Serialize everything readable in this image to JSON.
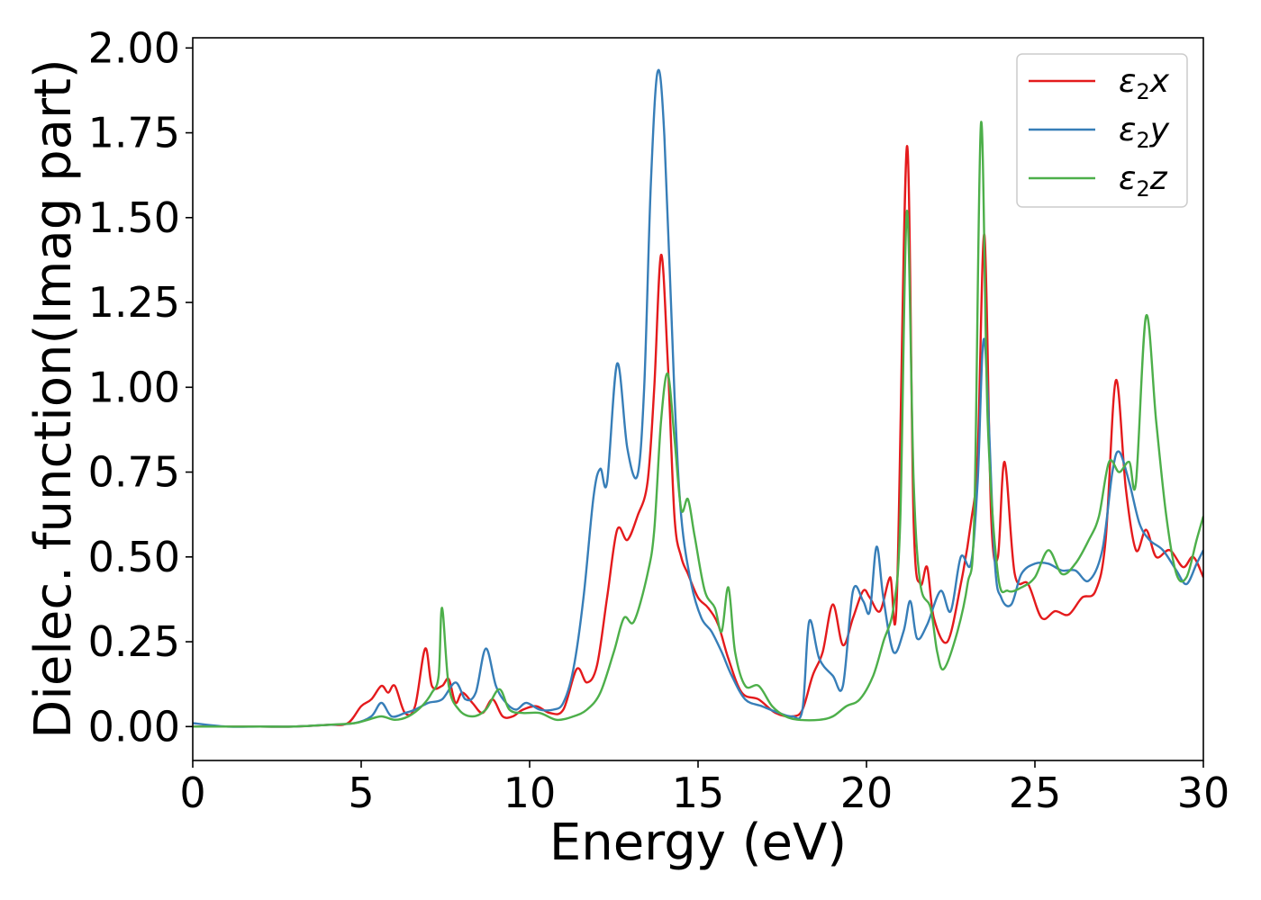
{
  "chart_data": {
    "type": "line",
    "xlabel": "Energy (eV)",
    "ylabel": "Dielec. function(Imag part)",
    "xlim": [
      0,
      30
    ],
    "ylim": [
      -0.1,
      2.03
    ],
    "xticks": [
      0,
      5,
      10,
      15,
      20,
      25,
      30
    ],
    "yticks": [
      0.0,
      0.25,
      0.5,
      0.75,
      1.0,
      1.25,
      1.5,
      1.75,
      2.0
    ],
    "xtick_labels": [
      "0",
      "5",
      "10",
      "15",
      "20",
      "25",
      "30"
    ],
    "ytick_labels": [
      "0.00",
      "0.25",
      "0.50",
      "0.75",
      "1.00",
      "1.25",
      "1.50",
      "1.75",
      "2.00"
    ],
    "grid": false,
    "legend_position": "top-right",
    "series": [
      {
        "name": "ε2x",
        "legend_base": "ε",
        "legend_sub": "2",
        "legend_tail": "x",
        "color": "#e41a1c",
        "points": [
          [
            0,
            0.0
          ],
          [
            1,
            0.0
          ],
          [
            2,
            0.0
          ],
          [
            3,
            0.0
          ],
          [
            4,
            0.005
          ],
          [
            4.6,
            0.01
          ],
          [
            5,
            0.06
          ],
          [
            5.3,
            0.08
          ],
          [
            5.6,
            0.12
          ],
          [
            5.8,
            0.1
          ],
          [
            6.0,
            0.12
          ],
          [
            6.3,
            0.04
          ],
          [
            6.6,
            0.06
          ],
          [
            6.9,
            0.23
          ],
          [
            7.1,
            0.12
          ],
          [
            7.4,
            0.12
          ],
          [
            7.6,
            0.14
          ],
          [
            7.8,
            0.07
          ],
          [
            8.0,
            0.1
          ],
          [
            8.3,
            0.07
          ],
          [
            8.6,
            0.04
          ],
          [
            8.9,
            0.08
          ],
          [
            9.2,
            0.03
          ],
          [
            9.5,
            0.03
          ],
          [
            9.8,
            0.05
          ],
          [
            10.2,
            0.06
          ],
          [
            10.6,
            0.04
          ],
          [
            11.0,
            0.05
          ],
          [
            11.4,
            0.17
          ],
          [
            11.7,
            0.13
          ],
          [
            12.0,
            0.18
          ],
          [
            12.3,
            0.38
          ],
          [
            12.6,
            0.58
          ],
          [
            12.9,
            0.55
          ],
          [
            13.2,
            0.62
          ],
          [
            13.5,
            0.72
          ],
          [
            13.7,
            1.0
          ],
          [
            13.9,
            1.39
          ],
          [
            14.1,
            1.08
          ],
          [
            14.3,
            0.62
          ],
          [
            14.5,
            0.5
          ],
          [
            14.7,
            0.45
          ],
          [
            15.0,
            0.38
          ],
          [
            15.3,
            0.35
          ],
          [
            15.6,
            0.3
          ],
          [
            15.9,
            0.2
          ],
          [
            16.3,
            0.1
          ],
          [
            16.8,
            0.08
          ],
          [
            17.3,
            0.04
          ],
          [
            17.8,
            0.03
          ],
          [
            18.1,
            0.05
          ],
          [
            18.4,
            0.15
          ],
          [
            18.7,
            0.22
          ],
          [
            19.0,
            0.36
          ],
          [
            19.3,
            0.24
          ],
          [
            19.6,
            0.32
          ],
          [
            19.9,
            0.4
          ],
          [
            20.1,
            0.38
          ],
          [
            20.4,
            0.34
          ],
          [
            20.7,
            0.44
          ],
          [
            20.9,
            0.38
          ],
          [
            21.2,
            1.71
          ],
          [
            21.4,
            0.6
          ],
          [
            21.6,
            0.42
          ],
          [
            21.8,
            0.47
          ],
          [
            22.0,
            0.32
          ],
          [
            22.4,
            0.25
          ],
          [
            22.8,
            0.42
          ],
          [
            23.1,
            0.6
          ],
          [
            23.3,
            0.8
          ],
          [
            23.5,
            1.45
          ],
          [
            23.7,
            0.62
          ],
          [
            23.9,
            0.5
          ],
          [
            24.1,
            0.78
          ],
          [
            24.4,
            0.45
          ],
          [
            24.8,
            0.42
          ],
          [
            25.2,
            0.32
          ],
          [
            25.6,
            0.34
          ],
          [
            26.0,
            0.33
          ],
          [
            26.4,
            0.38
          ],
          [
            26.8,
            0.4
          ],
          [
            27.1,
            0.55
          ],
          [
            27.4,
            1.02
          ],
          [
            27.7,
            0.7
          ],
          [
            28.0,
            0.52
          ],
          [
            28.3,
            0.58
          ],
          [
            28.6,
            0.5
          ],
          [
            29.0,
            0.52
          ],
          [
            29.4,
            0.47
          ],
          [
            29.7,
            0.5
          ],
          [
            30.0,
            0.44
          ]
        ]
      },
      {
        "name": "ε2y",
        "legend_base": "ε",
        "legend_sub": "2",
        "legend_tail": "y",
        "color": "#377eb8",
        "points": [
          [
            0,
            0.01
          ],
          [
            1,
            0.0
          ],
          [
            2,
            0.0
          ],
          [
            3,
            0.0
          ],
          [
            4,
            0.005
          ],
          [
            4.8,
            0.01
          ],
          [
            5.3,
            0.03
          ],
          [
            5.6,
            0.07
          ],
          [
            5.9,
            0.03
          ],
          [
            6.3,
            0.04
          ],
          [
            6.6,
            0.05
          ],
          [
            7.0,
            0.07
          ],
          [
            7.4,
            0.08
          ],
          [
            7.8,
            0.13
          ],
          [
            8.1,
            0.08
          ],
          [
            8.4,
            0.1
          ],
          [
            8.7,
            0.23
          ],
          [
            9.0,
            0.12
          ],
          [
            9.3,
            0.07
          ],
          [
            9.6,
            0.05
          ],
          [
            9.9,
            0.07
          ],
          [
            10.3,
            0.05
          ],
          [
            10.7,
            0.05
          ],
          [
            11.0,
            0.07
          ],
          [
            11.3,
            0.17
          ],
          [
            11.6,
            0.38
          ],
          [
            11.9,
            0.68
          ],
          [
            12.1,
            0.76
          ],
          [
            12.3,
            0.72
          ],
          [
            12.6,
            1.07
          ],
          [
            12.9,
            0.82
          ],
          [
            13.2,
            0.74
          ],
          [
            13.4,
            1.0
          ],
          [
            13.6,
            1.6
          ],
          [
            13.8,
            1.93
          ],
          [
            14.0,
            1.74
          ],
          [
            14.3,
            0.98
          ],
          [
            14.5,
            0.62
          ],
          [
            14.8,
            0.42
          ],
          [
            15.1,
            0.32
          ],
          [
            15.4,
            0.28
          ],
          [
            15.7,
            0.22
          ],
          [
            16.0,
            0.15
          ],
          [
            16.4,
            0.08
          ],
          [
            16.9,
            0.06
          ],
          [
            17.4,
            0.04
          ],
          [
            17.8,
            0.03
          ],
          [
            18.1,
            0.05
          ],
          [
            18.3,
            0.31
          ],
          [
            18.6,
            0.2
          ],
          [
            19.0,
            0.15
          ],
          [
            19.3,
            0.12
          ],
          [
            19.6,
            0.4
          ],
          [
            19.9,
            0.37
          ],
          [
            20.1,
            0.34
          ],
          [
            20.3,
            0.53
          ],
          [
            20.5,
            0.38
          ],
          [
            20.8,
            0.22
          ],
          [
            21.1,
            0.28
          ],
          [
            21.3,
            0.37
          ],
          [
            21.5,
            0.26
          ],
          [
            21.8,
            0.3
          ],
          [
            22.2,
            0.4
          ],
          [
            22.5,
            0.34
          ],
          [
            22.8,
            0.5
          ],
          [
            23.1,
            0.48
          ],
          [
            23.3,
            0.72
          ],
          [
            23.5,
            1.14
          ],
          [
            23.8,
            0.5
          ],
          [
            24.0,
            0.38
          ],
          [
            24.3,
            0.36
          ],
          [
            24.6,
            0.45
          ],
          [
            25.0,
            0.48
          ],
          [
            25.4,
            0.48
          ],
          [
            25.8,
            0.46
          ],
          [
            26.2,
            0.46
          ],
          [
            26.6,
            0.43
          ],
          [
            27.0,
            0.52
          ],
          [
            27.3,
            0.75
          ],
          [
            27.5,
            0.81
          ],
          [
            27.8,
            0.72
          ],
          [
            28.1,
            0.6
          ],
          [
            28.4,
            0.55
          ],
          [
            28.8,
            0.52
          ],
          [
            29.2,
            0.46
          ],
          [
            29.5,
            0.42
          ],
          [
            29.8,
            0.48
          ],
          [
            30.0,
            0.52
          ]
        ]
      },
      {
        "name": "ε2z",
        "legend_base": "ε",
        "legend_sub": "2",
        "legend_tail": "z",
        "color": "#4daf4a",
        "points": [
          [
            0,
            0.0
          ],
          [
            1,
            0.0
          ],
          [
            2,
            0.0
          ],
          [
            3,
            0.0
          ],
          [
            4,
            0.005
          ],
          [
            4.8,
            0.01
          ],
          [
            5.2,
            0.02
          ],
          [
            5.6,
            0.03
          ],
          [
            6.0,
            0.02
          ],
          [
            6.4,
            0.03
          ],
          [
            6.8,
            0.06
          ],
          [
            7.1,
            0.1
          ],
          [
            7.3,
            0.15
          ],
          [
            7.4,
            0.35
          ],
          [
            7.6,
            0.12
          ],
          [
            7.9,
            0.05
          ],
          [
            8.3,
            0.03
          ],
          [
            8.7,
            0.05
          ],
          [
            9.1,
            0.11
          ],
          [
            9.4,
            0.05
          ],
          [
            9.8,
            0.04
          ],
          [
            10.3,
            0.04
          ],
          [
            10.8,
            0.02
          ],
          [
            11.3,
            0.03
          ],
          [
            11.7,
            0.05
          ],
          [
            12.1,
            0.1
          ],
          [
            12.5,
            0.22
          ],
          [
            12.8,
            0.32
          ],
          [
            13.1,
            0.31
          ],
          [
            13.5,
            0.45
          ],
          [
            13.7,
            0.58
          ],
          [
            13.9,
            0.9
          ],
          [
            14.1,
            1.04
          ],
          [
            14.3,
            0.85
          ],
          [
            14.5,
            0.64
          ],
          [
            14.7,
            0.67
          ],
          [
            14.9,
            0.56
          ],
          [
            15.2,
            0.4
          ],
          [
            15.5,
            0.35
          ],
          [
            15.7,
            0.28
          ],
          [
            15.9,
            0.41
          ],
          [
            16.1,
            0.22
          ],
          [
            16.4,
            0.12
          ],
          [
            16.8,
            0.12
          ],
          [
            17.2,
            0.06
          ],
          [
            17.6,
            0.03
          ],
          [
            18.0,
            0.02
          ],
          [
            18.6,
            0.02
          ],
          [
            19.0,
            0.03
          ],
          [
            19.4,
            0.06
          ],
          [
            19.8,
            0.08
          ],
          [
            20.2,
            0.15
          ],
          [
            20.5,
            0.25
          ],
          [
            20.8,
            0.35
          ],
          [
            21.0,
            0.6
          ],
          [
            21.2,
            1.52
          ],
          [
            21.4,
            0.72
          ],
          [
            21.6,
            0.42
          ],
          [
            21.9,
            0.35
          ],
          [
            22.1,
            0.22
          ],
          [
            22.3,
            0.17
          ],
          [
            22.7,
            0.28
          ],
          [
            23.0,
            0.42
          ],
          [
            23.2,
            0.62
          ],
          [
            23.4,
            1.78
          ],
          [
            23.6,
            0.9
          ],
          [
            23.9,
            0.45
          ],
          [
            24.2,
            0.4
          ],
          [
            24.6,
            0.41
          ],
          [
            25.0,
            0.44
          ],
          [
            25.4,
            0.52
          ],
          [
            25.8,
            0.45
          ],
          [
            26.2,
            0.48
          ],
          [
            26.6,
            0.55
          ],
          [
            26.9,
            0.62
          ],
          [
            27.2,
            0.78
          ],
          [
            27.5,
            0.75
          ],
          [
            27.8,
            0.78
          ],
          [
            28.0,
            0.72
          ],
          [
            28.3,
            1.21
          ],
          [
            28.6,
            0.9
          ],
          [
            28.9,
            0.62
          ],
          [
            29.2,
            0.45
          ],
          [
            29.5,
            0.44
          ],
          [
            29.8,
            0.55
          ],
          [
            30.0,
            0.62
          ]
        ]
      }
    ]
  }
}
